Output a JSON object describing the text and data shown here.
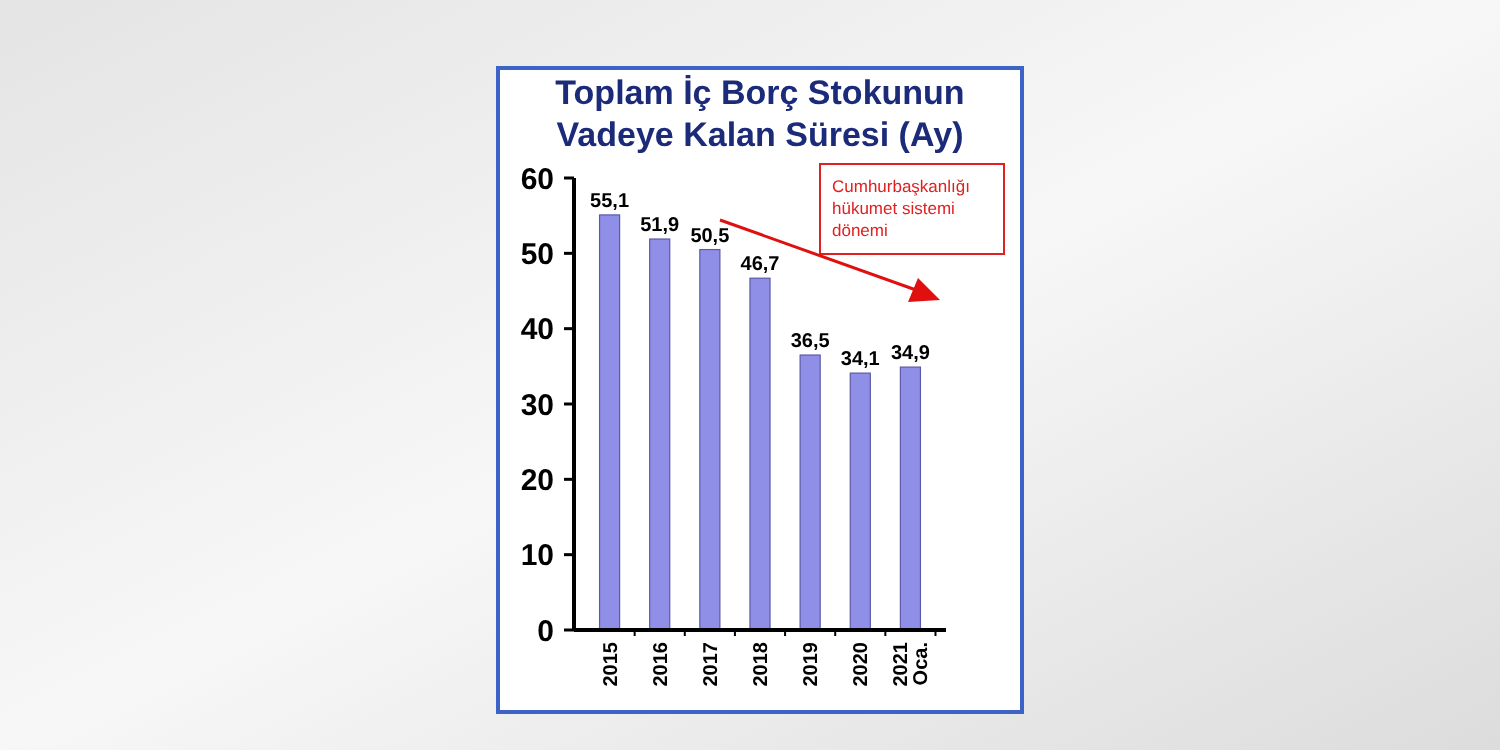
{
  "chart_data": {
    "type": "bar",
    "title": "Toplam İç Borç Stokunun Vadeye Kalan Süresi (Ay)",
    "categories": [
      "2015",
      "2016",
      "2017",
      "2018",
      "2019",
      "2020",
      "2021 Oca."
    ],
    "values": [
      55.1,
      51.9,
      50.5,
      46.7,
      36.5,
      34.1,
      34.9
    ],
    "value_labels": [
      "55,1",
      "51,9",
      "50,5",
      "46,7",
      "36,5",
      "34,1",
      "34,9"
    ],
    "color": "#8f8fe8",
    "ylim": [
      0,
      60
    ],
    "yticks": [
      0,
      10,
      20,
      30,
      40,
      50,
      60
    ],
    "grid": false,
    "annotations": [
      "Cumhurbaşkanlığı hükumet sistemi dönemi"
    ]
  }
}
